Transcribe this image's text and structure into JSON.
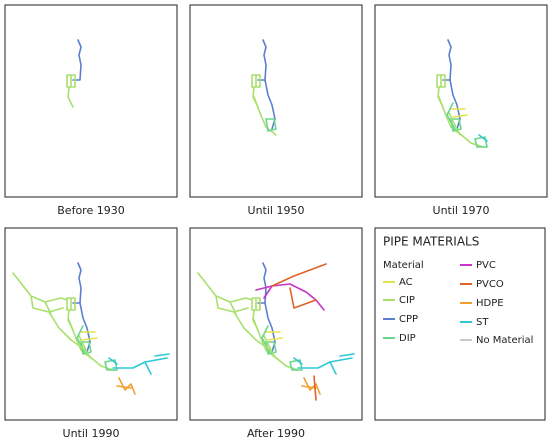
{
  "panels": [
    {
      "caption": "Before 1930"
    },
    {
      "caption": "Until 1950"
    },
    {
      "caption": "Until 1970"
    },
    {
      "caption": "Until 1990"
    },
    {
      "caption": "After 1990"
    }
  ],
  "legend": {
    "title": "PIPE MATERIALS",
    "subtitle": "Material",
    "items": [
      {
        "label": "AC",
        "color": "#e4e44a"
      },
      {
        "label": "CIP",
        "color": "#a8e06c"
      },
      {
        "label": "CPP",
        "color": "#5b7fd0"
      },
      {
        "label": "DIP",
        "color": "#6ad68c"
      },
      {
        "label": "PVC",
        "color": "#c833c8"
      },
      {
        "label": "PVCO",
        "color": "#e0622a"
      },
      {
        "label": "HDPE",
        "color": "#f0a030"
      },
      {
        "label": "ST",
        "color": "#30c8d8"
      },
      {
        "label": "No Material",
        "color": "#c8c8c8"
      }
    ]
  }
}
